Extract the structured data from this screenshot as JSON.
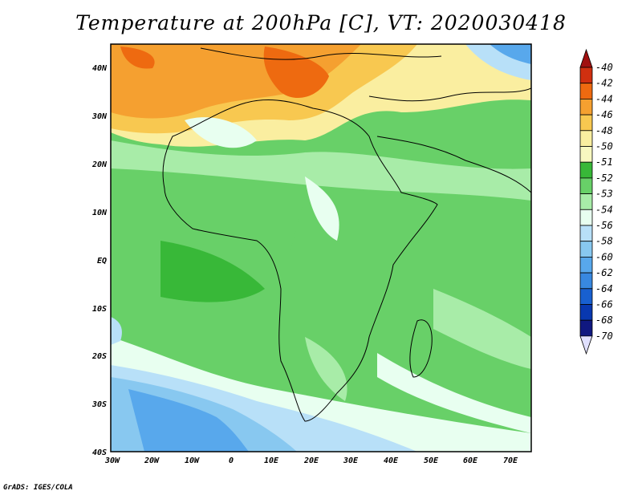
{
  "title": "Temperature at 200hPa [C], VT: 2020030418",
  "credit": "GrADS: IGES/COLA",
  "map": {
    "lon_labels": [
      "30W",
      "20W",
      "10W",
      "0",
      "10E",
      "20E",
      "30E",
      "40E",
      "50E",
      "60E",
      "70E"
    ],
    "lat_labels": [
      "40N",
      "30N",
      "20N",
      "10N",
      "EQ",
      "10S",
      "20S",
      "30S",
      "40S"
    ]
  },
  "colorbar": {
    "labels": [
      "-40",
      "-42",
      "-44",
      "-46",
      "-48",
      "-50",
      "-51",
      "-52",
      "-53",
      "-54",
      "-56",
      "-58",
      "-60",
      "-62",
      "-64",
      "-66",
      "-68",
      "-70"
    ],
    "colors": [
      "#a01010",
      "#d03010",
      "#ee6a10",
      "#f5a030",
      "#f8c850",
      "#faeea0",
      "#f8f8c0",
      "#38b838",
      "#68d068",
      "#a8eca8",
      "#e8fff0",
      "#b8e0f8",
      "#88c8f0",
      "#58a8ec",
      "#3888e0",
      "#1860d0",
      "#0838b0",
      "#101880",
      "#000060"
    ]
  },
  "colors": {
    "background": "#ffffff",
    "border": "#000000"
  }
}
